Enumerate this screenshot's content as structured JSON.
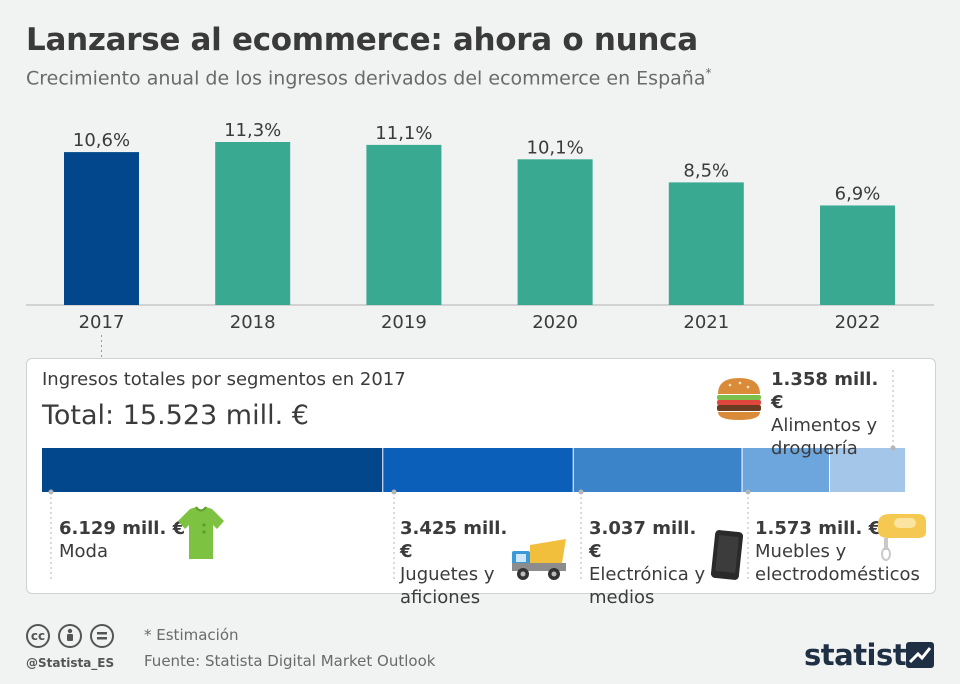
{
  "title": "Lanzarse al ecommerce: ahora o nunca",
  "subtitle": "Crecimiento anual de los ingresos derivados del ecommerce en España",
  "subtitle_mark": "*",
  "chart_data": {
    "type": "bar",
    "categories": [
      "2017",
      "2018",
      "2019",
      "2020",
      "2021",
      "2022"
    ],
    "values": [
      10.6,
      11.3,
      11.1,
      10.1,
      8.5,
      6.9
    ],
    "value_labels": [
      "10,6%",
      "11,3%",
      "11,1%",
      "10,1%",
      "8,5%",
      "6,9%"
    ],
    "ylim": [
      0,
      11.3
    ],
    "grid": false,
    "highlight_index": 0,
    "colors": {
      "highlight": "#02478c",
      "bars": "#3aa991",
      "axis": "#c7c7c7"
    }
  },
  "segments": {
    "title": "Ingresos totales por segmentos en 2017",
    "total": "Total: 15.523 mill. €",
    "chart_data": {
      "type": "bar",
      "stacked": true,
      "unit": "mill. €",
      "values": [
        6129,
        3425,
        3037,
        1573,
        1358
      ],
      "colors": [
        "#02478c",
        "#0b5fb8",
        "#3b84c9",
        "#6da6dc",
        "#a4c6e8"
      ],
      "items": [
        {
          "value": "6.129 mill. €",
          "name": "Moda",
          "icon": "shirt-icon"
        },
        {
          "value": "3.425 mill. €",
          "name": "Juguetes y aficiones",
          "icon": "dump-truck-icon"
        },
        {
          "value": "3.037 mill. €",
          "name": "Electrónica y medios",
          "icon": "smartphone-icon"
        },
        {
          "value": "1.573 mill. €",
          "name": "Muebles y electrodomésticos",
          "icon": "hand-mixer-icon"
        },
        {
          "value": "1.358 mill. €",
          "name": "Alimentos y droguería",
          "icon": "burger-icon"
        }
      ]
    }
  },
  "footer": {
    "note": "* Estimación",
    "source": "Fuente: Statista Digital Market Outlook",
    "handle": "@Statista_ES",
    "brand": "statista",
    "license_icons": [
      "cc-icon",
      "by-icon",
      "nd-icon"
    ]
  }
}
